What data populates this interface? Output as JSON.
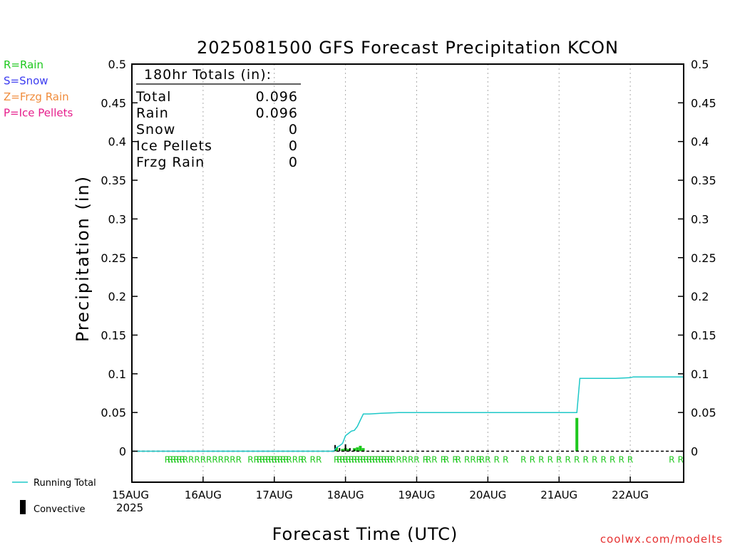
{
  "chart_data": {
    "type": "bar",
    "title": "2025081500 GFS Forecast Precipitation KCON",
    "ylabel": "Precipitation (in)",
    "xlabel": "Forecast Time (UTC)",
    "ylim": [
      -0.04,
      0.5
    ],
    "xlim_hours": [
      0,
      186
    ],
    "y_ticks": [
      "0",
      "0.05",
      "0.1",
      "0.15",
      "0.2",
      "0.25",
      "0.3",
      "0.35",
      "0.4",
      "0.45",
      "0.5"
    ],
    "y_tick_values": [
      0,
      0.05,
      0.1,
      0.15,
      0.2,
      0.25,
      0.3,
      0.35,
      0.4,
      0.45,
      0.5
    ],
    "x_ticks": [
      {
        "label": "15AUG",
        "hour": 0
      },
      {
        "label": "16AUG",
        "hour": 24
      },
      {
        "label": "17AUG",
        "hour": 48
      },
      {
        "label": "18AUG",
        "hour": 72
      },
      {
        "label": "19AUG",
        "hour": 96
      },
      {
        "label": "20AUG",
        "hour": 120
      },
      {
        "label": "21AUG",
        "hour": 144
      },
      {
        "label": "22AUG",
        "hour": 168
      }
    ],
    "year_label": "2025",
    "grid": "vertical-dotted",
    "type_legend": [
      {
        "code": "R=Rain",
        "color": "#1ec81e"
      },
      {
        "code": "S=Snow",
        "color": "#3c3cf0"
      },
      {
        "code": "Z=Frzg Rain",
        "color": "#f08c3c"
      },
      {
        "code": "P=Ice Pellets",
        "color": "#e61e8c"
      }
    ],
    "series_legend": [
      {
        "name": "Running Total",
        "color": "#1ec8c8"
      },
      {
        "name": "Convective",
        "color": "#000000"
      }
    ],
    "totals_box": {
      "header": "180hr Totals (in):",
      "rows": [
        {
          "label": "Total",
          "value": "0.096"
        },
        {
          "label": "Rain",
          "value": "0.096"
        },
        {
          "label": "Snow",
          "value": "0"
        },
        {
          "label": "Ice Pellets",
          "value": "0"
        },
        {
          "label": "Frzg Rain",
          "value": "0"
        }
      ]
    },
    "precip_bars": [
      {
        "hour": 69,
        "value": 0.005
      },
      {
        "hour": 71,
        "value": 0.003
      },
      {
        "hour": 72,
        "value": 0.004
      },
      {
        "hour": 73,
        "value": 0.003
      },
      {
        "hour": 75,
        "value": 0.004
      },
      {
        "hour": 76,
        "value": 0.005
      },
      {
        "hour": 77,
        "value": 0.007
      },
      {
        "hour": 78,
        "value": 0.004
      },
      {
        "hour": 150,
        "value": 0.043
      }
    ],
    "convective_bars": [
      {
        "hour": 68.5,
        "value": 0.008
      },
      {
        "hour": 70,
        "value": 0.004
      },
      {
        "hour": 72,
        "value": 0.009
      },
      {
        "hour": 73.5,
        "value": 0.004
      },
      {
        "hour": 75,
        "value": 0.002
      }
    ],
    "running_total": {
      "hours": [
        0,
        68,
        69,
        70,
        71,
        72,
        73,
        74,
        75,
        76,
        77,
        78,
        80,
        84,
        90,
        96,
        144,
        150,
        151,
        163,
        168,
        169,
        186
      ],
      "values": [
        0,
        0,
        0.005,
        0.007,
        0.01,
        0.02,
        0.023,
        0.026,
        0.027,
        0.032,
        0.04,
        0.048,
        0.048,
        0.049,
        0.05,
        0.05,
        0.05,
        0.05,
        0.094,
        0.094,
        0.095,
        0.096,
        0.096
      ]
    },
    "ptype_markers": {
      "symbol": "R",
      "hours": [
        12,
        13,
        14,
        15,
        16,
        17,
        18,
        20,
        22,
        24,
        26,
        28,
        30,
        32,
        34,
        36,
        40,
        42,
        43,
        44,
        45,
        46,
        47,
        48,
        49,
        50,
        51,
        52,
        53,
        55,
        57,
        58,
        61,
        63,
        69,
        70,
        71,
        72,
        73,
        74,
        75,
        76,
        77,
        78,
        79,
        80,
        81,
        82,
        83,
        84,
        85,
        86,
        87,
        88,
        90,
        92,
        94,
        96,
        99,
        100,
        102,
        105,
        106,
        109,
        110,
        113,
        115,
        117,
        118,
        120,
        123,
        126,
        132,
        135,
        138,
        141,
        144,
        147,
        150,
        153,
        156,
        159,
        162,
        165,
        168,
        182,
        185
      ]
    },
    "watermark": "coolwx.com/modelts"
  }
}
